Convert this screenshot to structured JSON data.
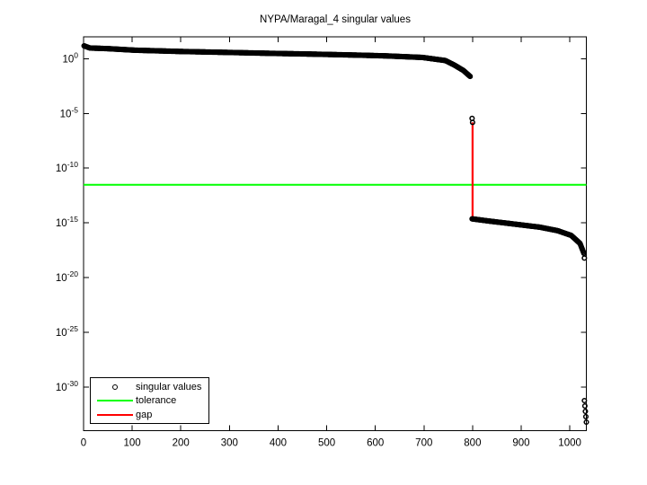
{
  "figure": {
    "background": "#ffffff",
    "axis_color": "#000000"
  },
  "chart_data": {
    "type": "scatter",
    "title": "NYPA/Maragal_4 singular values",
    "xlabel": "",
    "ylabel": "",
    "grid": false,
    "x_axis": {
      "min": 0,
      "max": 1034,
      "ticks": [
        0,
        100,
        200,
        300,
        400,
        500,
        600,
        700,
        800,
        900,
        1000
      ]
    },
    "y_axis": {
      "scale": "log",
      "min_exp": -34,
      "max_exp": 2,
      "tick_exps": [
        0,
        -5,
        -10,
        -15,
        -20,
        -25,
        -30
      ],
      "tick_base": "10"
    },
    "series": {
      "singular_values": {
        "marker": "circle",
        "color": "#000000",
        "segments": [
          {
            "name": "upper_cluster",
            "anchors": [
              [
                1,
                15
              ],
              [
                13,
                9.5
              ],
              [
                50,
                8.3
              ],
              [
                105,
                6.0
              ],
              [
                198,
                4.6
              ],
              [
                290,
                3.8
              ],
              [
                383,
                3.1
              ],
              [
                475,
                2.6
              ],
              [
                568,
                2.1
              ],
              [
                623,
                1.8
              ],
              [
                697,
                1.3
              ],
              [
                744,
                0.68
              ],
              [
                762,
                0.27
              ],
              [
                781,
                0.085
              ],
              [
                795,
                0.024
              ]
            ]
          },
          {
            "name": "lower_cluster",
            "anchors": [
              [
                799,
                2.3e-15
              ],
              [
                836,
                1.4e-15
              ],
              [
                864,
                1e-15
              ],
              [
                938,
                4e-16
              ],
              [
                975,
                1.9e-16
              ],
              [
                1003,
                7e-17
              ],
              [
                1021,
                1.3e-17
              ],
              [
                1029,
                1.6e-18
              ],
              [
                1030,
                6e-19
              ]
            ]
          }
        ],
        "isolated_points": [
          [
            799,
            3.5e-06
          ],
          [
            800,
            1.5e-06
          ],
          [
            1030,
            5.6e-32
          ],
          [
            1031,
            1.8e-32
          ],
          [
            1032,
            5.8e-33
          ],
          [
            1033,
            1.9e-33
          ],
          [
            1034,
            6e-34
          ]
        ]
      },
      "tolerance": {
        "color": "#00ff00",
        "value": 3e-12
      },
      "gap": {
        "color": "#ff0000",
        "index": 800,
        "from": 2.2e-15,
        "to": 1.5e-06
      }
    },
    "legend_position": "southwest"
  },
  "legend": {
    "items": [
      {
        "label": "singular values",
        "swatch": "black-circle-marker"
      },
      {
        "label": "tolerance",
        "swatch": "green-line"
      },
      {
        "label": "gap",
        "swatch": "red-line"
      }
    ]
  }
}
